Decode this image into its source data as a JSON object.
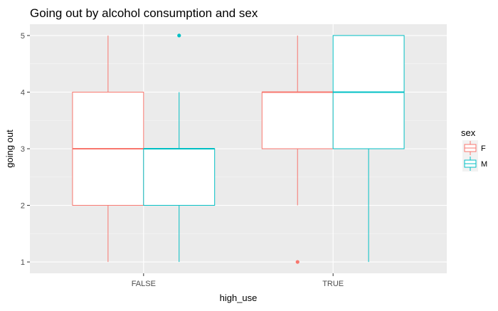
{
  "chart_data": {
    "type": "boxplot",
    "title": "Going out by alcohol consumption and sex",
    "xlabel": "high_use",
    "ylabel": "going out",
    "categories": [
      "FALSE",
      "TRUE"
    ],
    "yticks": [
      1,
      2,
      3,
      4,
      5
    ],
    "ylim": [
      0.8,
      5.2
    ],
    "grid": true,
    "legend": {
      "title": "sex",
      "position": "right",
      "entries": [
        "F",
        "M"
      ]
    },
    "series": [
      {
        "name": "F",
        "color": "#F8766D",
        "boxes": [
          {
            "category": "FALSE",
            "min": 1,
            "q1": 2,
            "median": 3,
            "q3": 4,
            "max": 5,
            "outliers": []
          },
          {
            "category": "TRUE",
            "min": 2,
            "q1": 3,
            "median": 4,
            "q3": 4,
            "max": 5,
            "outliers": [
              1
            ]
          }
        ]
      },
      {
        "name": "M",
        "color": "#00BFC4",
        "boxes": [
          {
            "category": "FALSE",
            "min": 1,
            "q1": 2,
            "median": 3,
            "q3": 3,
            "max": 4,
            "outliers": [
              5
            ]
          },
          {
            "category": "TRUE",
            "min": 1,
            "q1": 3,
            "median": 4,
            "q3": 5,
            "max": 5,
            "outliers": []
          }
        ]
      }
    ]
  }
}
